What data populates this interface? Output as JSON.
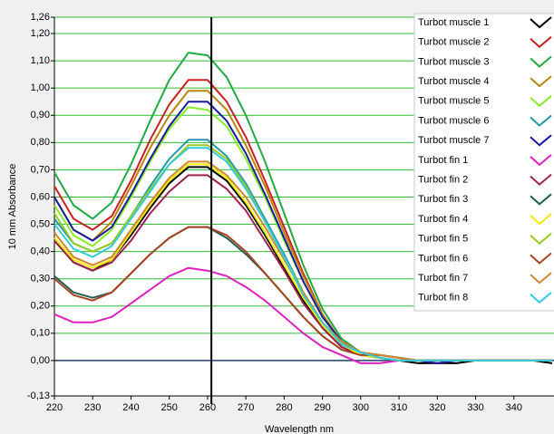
{
  "chart_data": {
    "type": "line",
    "y_label": "10 mm Absorbance",
    "x_label": "Wavelength nm",
    "x": [
      220,
      225,
      230,
      235,
      240,
      245,
      250,
      255,
      260,
      265,
      270,
      275,
      280,
      285,
      290,
      295,
      300,
      305,
      310,
      315,
      320,
      325,
      330,
      335,
      340,
      345,
      350
    ],
    "xlim": [
      220,
      350
    ],
    "xticks": [
      220,
      230,
      240,
      250,
      260,
      270,
      280,
      290,
      300,
      310,
      320,
      330,
      340
    ],
    "ylim": [
      -0.13,
      1.26
    ],
    "yticks": [
      {
        "value": -0.13,
        "label": "-0,13"
      },
      {
        "value": 0,
        "label": "0,00"
      },
      {
        "value": 0.1,
        "label": "0,10"
      },
      {
        "value": 0.2,
        "label": "0,20"
      },
      {
        "value": 0.3,
        "label": "0,30"
      },
      {
        "value": 0.4,
        "label": "0,40"
      },
      {
        "value": 0.5,
        "label": "0,50"
      },
      {
        "value": 0.6,
        "label": "0,60"
      },
      {
        "value": 0.7,
        "label": "0,70"
      },
      {
        "value": 0.8,
        "label": "0,80"
      },
      {
        "value": 0.9,
        "label": "0,90"
      },
      {
        "value": 1.0,
        "label": "1,00"
      },
      {
        "value": 1.1,
        "label": "1,10"
      },
      {
        "value": 1.2,
        "label": "1,20"
      },
      {
        "value": 1.26,
        "label": "1,26"
      }
    ],
    "grid": true,
    "grid_color": "#2fbf2f",
    "zero_line_color": "#1f3f6f",
    "vline": 261,
    "series": [
      {
        "name": "Turbot muscle 1",
        "color": "#000000",
        "values": [
          0.44,
          0.36,
          0.33,
          0.37,
          0.46,
          0.56,
          0.65,
          0.71,
          0.71,
          0.66,
          0.57,
          0.46,
          0.34,
          0.22,
          0.12,
          0.05,
          0.02,
          0.01,
          0,
          -0.01,
          -0.01,
          -0.01,
          0,
          0,
          0,
          0,
          -0.01
        ]
      },
      {
        "name": "Turbot muscle 2",
        "color": "#cc2020",
        "values": [
          0.64,
          0.52,
          0.48,
          0.53,
          0.66,
          0.81,
          0.94,
          1.03,
          1.03,
          0.95,
          0.82,
          0.66,
          0.49,
          0.32,
          0.17,
          0.07,
          0.03,
          0.01,
          0,
          0,
          -0.01,
          0,
          0,
          0,
          0,
          0,
          0
        ]
      },
      {
        "name": "Turbot muscle 3",
        "color": "#22aa44",
        "values": [
          0.69,
          0.57,
          0.52,
          0.58,
          0.72,
          0.88,
          1.03,
          1.13,
          1.12,
          1.04,
          0.9,
          0.73,
          0.54,
          0.35,
          0.19,
          0.08,
          0.03,
          0.01,
          0,
          0,
          0,
          0,
          0,
          0,
          0,
          0,
          0
        ]
      },
      {
        "name": "Turbot muscle 4",
        "color": "#b8860b",
        "values": [
          0.6,
          0.48,
          0.44,
          0.51,
          0.64,
          0.78,
          0.9,
          0.99,
          0.99,
          0.92,
          0.79,
          0.64,
          0.47,
          0.31,
          0.17,
          0.07,
          0.03,
          0.02,
          0.01,
          0,
          0,
          0,
          0,
          0,
          0,
          0,
          0
        ]
      },
      {
        "name": "Turbot muscle 5",
        "color": "#88ee22",
        "values": [
          0.57,
          0.46,
          0.42,
          0.48,
          0.6,
          0.73,
          0.85,
          0.93,
          0.92,
          0.86,
          0.74,
          0.6,
          0.44,
          0.29,
          0.16,
          0.07,
          0.03,
          0.01,
          0,
          0,
          0,
          0,
          0,
          0,
          0,
          0,
          0
        ]
      },
      {
        "name": "Turbot muscle 6",
        "color": "#2299aa",
        "values": [
          0.52,
          0.43,
          0.4,
          0.43,
          0.53,
          0.64,
          0.74,
          0.81,
          0.81,
          0.75,
          0.65,
          0.52,
          0.39,
          0.25,
          0.14,
          0.06,
          0.03,
          0.02,
          0.01,
          0,
          0,
          0,
          0,
          0,
          0,
          0,
          0
        ]
      },
      {
        "name": "Turbot muscle 7",
        "color": "#1a1aa0",
        "values": [
          0.6,
          0.48,
          0.44,
          0.49,
          0.61,
          0.74,
          0.86,
          0.95,
          0.95,
          0.88,
          0.76,
          0.61,
          0.45,
          0.29,
          0.16,
          0.07,
          0.03,
          0.01,
          0,
          0,
          -0.01,
          0,
          0,
          0,
          0,
          0,
          0
        ]
      },
      {
        "name": "Turbot fin 1",
        "color": "#e020c0",
        "values": [
          0.17,
          0.14,
          0.14,
          0.16,
          0.21,
          0.26,
          0.31,
          0.34,
          0.33,
          0.31,
          0.27,
          0.22,
          0.16,
          0.1,
          0.05,
          0.02,
          -0.01,
          -0.01,
          0,
          0,
          0,
          0,
          0,
          0,
          0,
          0,
          0
        ]
      },
      {
        "name": "Turbot fin 2",
        "color": "#a02050",
        "values": [
          0.44,
          0.36,
          0.33,
          0.36,
          0.44,
          0.54,
          0.62,
          0.68,
          0.68,
          0.63,
          0.55,
          0.44,
          0.33,
          0.21,
          0.12,
          0.05,
          0.02,
          0.01,
          0,
          0,
          0,
          0,
          0,
          0,
          0,
          0,
          0
        ]
      },
      {
        "name": "Turbot fin 3",
        "color": "#206050",
        "values": [
          0.31,
          0.25,
          0.23,
          0.25,
          0.32,
          0.39,
          0.45,
          0.49,
          0.49,
          0.45,
          0.39,
          0.32,
          0.24,
          0.16,
          0.09,
          0.04,
          0.02,
          0.01,
          0,
          0,
          0,
          0,
          0,
          0,
          0,
          0,
          0
        ]
      },
      {
        "name": "Turbot fin 4",
        "color": "#eeee00",
        "values": [
          0.45,
          0.37,
          0.34,
          0.37,
          0.47,
          0.57,
          0.66,
          0.72,
          0.72,
          0.67,
          0.58,
          0.47,
          0.35,
          0.23,
          0.13,
          0.06,
          0.02,
          0.01,
          0,
          0,
          0,
          0,
          0,
          0,
          0,
          0,
          0
        ]
      },
      {
        "name": "Turbot fin 5",
        "color": "#99cc22",
        "values": [
          0.54,
          0.43,
          0.4,
          0.43,
          0.53,
          0.63,
          0.72,
          0.79,
          0.79,
          0.74,
          0.64,
          0.51,
          0.38,
          0.25,
          0.14,
          0.06,
          0.03,
          0.01,
          0,
          0,
          0,
          0,
          0,
          0,
          0,
          0,
          0
        ]
      },
      {
        "name": "Turbot fin 6",
        "color": "#aa4422",
        "values": [
          0.3,
          0.24,
          0.22,
          0.25,
          0.32,
          0.39,
          0.45,
          0.49,
          0.49,
          0.46,
          0.4,
          0.32,
          0.24,
          0.16,
          0.09,
          0.04,
          0.02,
          0.02,
          0.01,
          0,
          0,
          0,
          0,
          0,
          0,
          0,
          0
        ]
      },
      {
        "name": "Turbot fin 7",
        "color": "#cc8833",
        "values": [
          0.47,
          0.38,
          0.35,
          0.38,
          0.48,
          0.58,
          0.67,
          0.73,
          0.73,
          0.68,
          0.6,
          0.49,
          0.37,
          0.25,
          0.14,
          0.07,
          0.03,
          0.02,
          0.01,
          0,
          0,
          0,
          0,
          0,
          0,
          0,
          0
        ]
      },
      {
        "name": "Turbot fin 8",
        "color": "#33ccdd",
        "values": [
          0.5,
          0.41,
          0.38,
          0.42,
          0.52,
          0.62,
          0.72,
          0.78,
          0.78,
          0.73,
          0.63,
          0.51,
          0.38,
          0.24,
          0.14,
          0.06,
          0.03,
          0.01,
          0,
          0,
          0,
          0,
          0,
          0,
          0,
          0,
          0
        ]
      }
    ]
  }
}
